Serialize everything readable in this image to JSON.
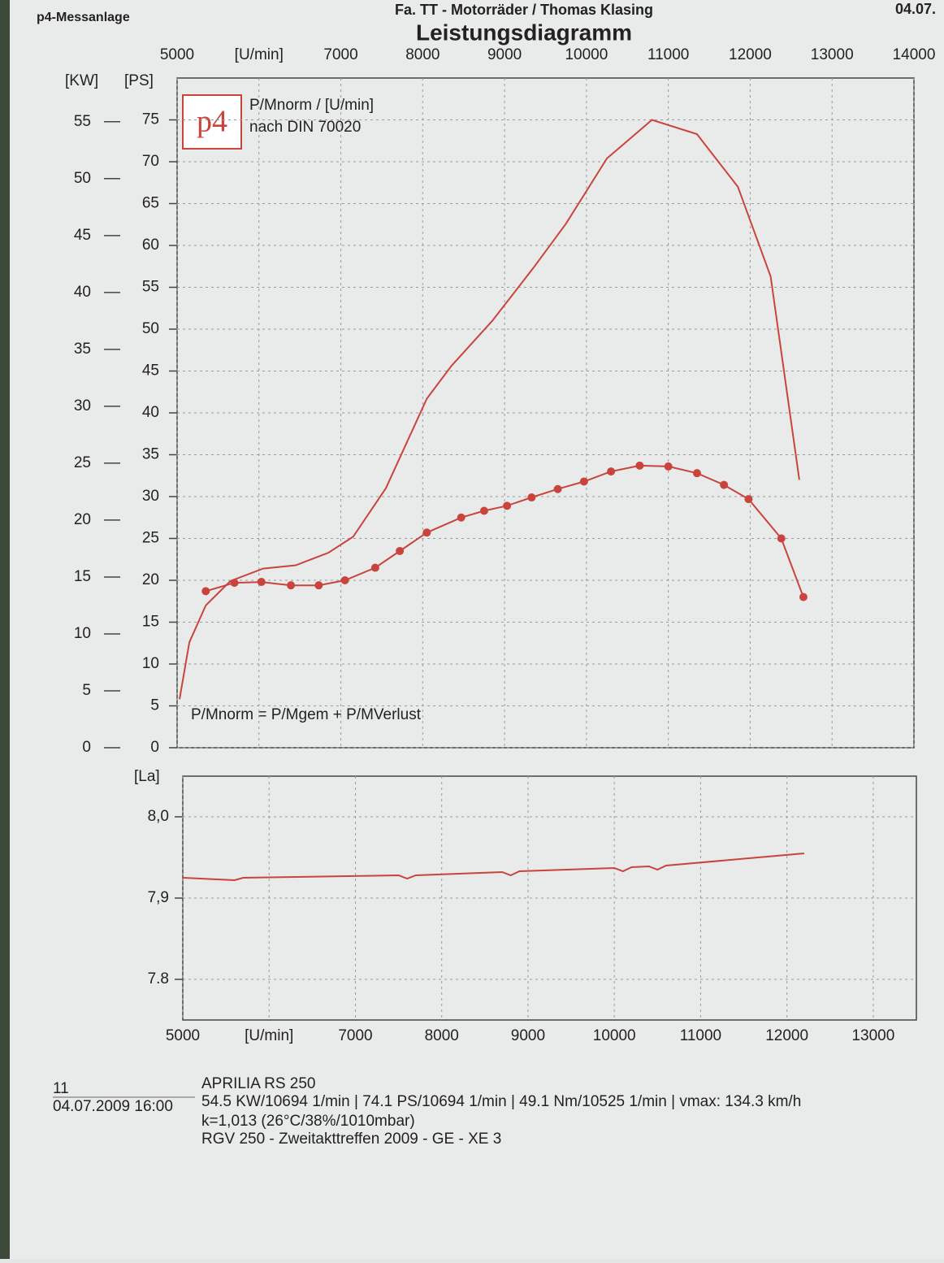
{
  "header": {
    "company": "p4-Messanlage",
    "shop": "Fa. TT - Motorräder / Thomas Klasing",
    "date": "04.07.",
    "logo": "p4",
    "legend_line1": "P/Mnorm / [U/min]",
    "legend_line2": "nach DIN 70020",
    "formula": "P/Mnorm = P/Mgem + P/MVerlust"
  },
  "chart_data": [
    {
      "type": "line",
      "title": "Leistungsdiagramm",
      "y_label": "[PS]",
      "y2_label": "[KW]",
      "xlim": [
        5000,
        14000
      ],
      "xticks": [
        5000,
        {
          "value": 6000,
          "label": "[U/min]"
        },
        7000,
        8000,
        9000,
        10000,
        11000,
        12000,
        13000,
        14000
      ],
      "ylim": [
        0,
        80
      ],
      "yticks": [
        0,
        5,
        10,
        15,
        20,
        25,
        30,
        35,
        40,
        45,
        50,
        55,
        60,
        65,
        70,
        75
      ],
      "y2lim": [
        0,
        58.84
      ],
      "y2ticks": [
        0,
        5,
        10,
        15,
        20,
        25,
        30,
        35,
        40,
        45,
        50,
        55
      ],
      "grid": true,
      "series": [
        {
          "color": "#c9443d",
          "markers": false,
          "x": [
            5030,
            5150,
            5350,
            5650,
            6050,
            6450,
            6850,
            7150,
            7550,
            8050,
            8350,
            8850,
            9350,
            9750,
            10250,
            10800,
            11350,
            11850,
            12250,
            12600
          ],
          "values": [
            5.8,
            12.6,
            17,
            19.9,
            21.4,
            21.8,
            23.3,
            25.2,
            31,
            41.7,
            45.6,
            51,
            57.3,
            62.6,
            70.4,
            75,
            73.3,
            67,
            56.3,
            32
          ]
        },
        {
          "color": "#c9443d",
          "markers": true,
          "x": [
            5350,
            5700,
            6030,
            6390,
            6730,
            7050,
            7420,
            7720,
            8050,
            8470,
            8750,
            9030,
            9330,
            9650,
            9970,
            10300,
            10650,
            11000,
            11350,
            11680,
            11980,
            12380,
            12650
          ],
          "values": [
            18.7,
            19.7,
            19.8,
            19.4,
            19.4,
            20,
            21.5,
            23.5,
            25.7,
            27.5,
            28.3,
            28.9,
            29.9,
            30.9,
            31.8,
            33,
            33.7,
            33.6,
            32.8,
            31.4,
            29.7,
            25,
            18
          ]
        }
      ]
    },
    {
      "type": "line",
      "y_label": "[La]",
      "xlim": [
        5000,
        13500
      ],
      "xticks": [
        5000,
        {
          "value": 6000,
          "label": "[U/min]"
        },
        7000,
        8000,
        9000,
        10000,
        11000,
        12000,
        13000
      ],
      "ylim": [
        7.75,
        8.05
      ],
      "yticks": [
        7.8,
        {
          "value": 7.9,
          "label": "7,9"
        },
        {
          "value": 8.0,
          "label": "8,0"
        }
      ],
      "grid": true,
      "series": [
        {
          "color": "#c9443d",
          "markers": false,
          "x": [
            5000,
            5600,
            5700,
            7500,
            7600,
            7700,
            8700,
            8800,
            8900,
            10000,
            10100,
            10200,
            10400,
            10500,
            10600,
            12200
          ],
          "values": [
            7.925,
            7.922,
            7.925,
            7.928,
            7.924,
            7.928,
            7.932,
            7.928,
            7.933,
            7.937,
            7.933,
            7.938,
            7.939,
            7.935,
            7.94,
            7.955
          ]
        }
      ]
    }
  ],
  "footer": {
    "number": "11",
    "datetime": "04.07.2009  16:00",
    "model": "APRILIA RS 250",
    "results": "54.5 KW/10694 1/min  |  74.1 PS/10694 1/min  |  49.1 Nm/10525 1/min | vmax: 134.3 km/h",
    "conditions": "k=1,013 (26°C/38%/1010mbar)",
    "event": "RGV 250 - Zweitakttreffen 2009 - GE - XE 3"
  }
}
